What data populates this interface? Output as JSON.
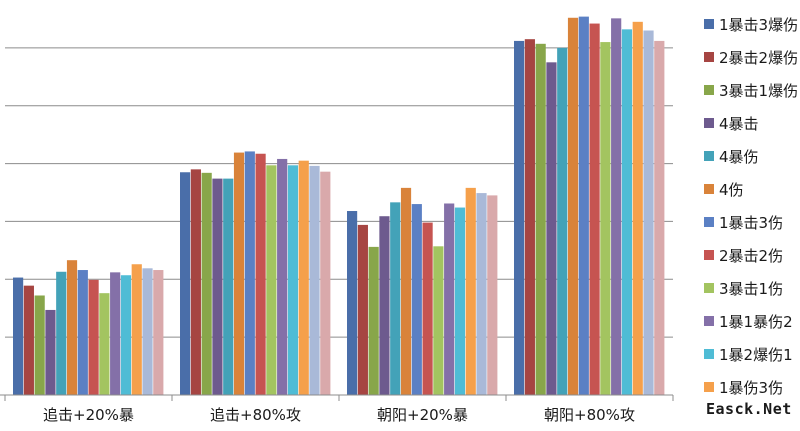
{
  "chart_data": {
    "type": "bar",
    "categories": [
      "追击+20%暴",
      "追击+80%攻",
      "朝阳+20%暴",
      "朝阳+80%攻"
    ],
    "series": [
      {
        "name": "1暴击3爆伤",
        "color": "#4a6ea9",
        "values": [
          203,
          385,
          318,
          612
        ]
      },
      {
        "name": "2暴击2爆伤",
        "color": "#a64542",
        "values": [
          189,
          390,
          294,
          615
        ]
      },
      {
        "name": "3暴击1爆伤",
        "color": "#88a64a",
        "values": [
          172,
          384,
          256,
          607
        ]
      },
      {
        "name": "4暴击",
        "color": "#6d5a8e",
        "values": [
          147,
          374,
          309,
          575
        ]
      },
      {
        "name": "4暴伤",
        "color": "#43a2b8",
        "values": [
          213,
          374,
          333,
          600
        ]
      },
      {
        "name": "4伤",
        "color": "#d9833a",
        "values": [
          233,
          419,
          358,
          652
        ]
      },
      {
        "name": "1暴击3伤",
        "color": "#5b80c4",
        "values": [
          216,
          421,
          330,
          654
        ]
      },
      {
        "name": "2暴击2伤",
        "color": "#c65451",
        "values": [
          199,
          417,
          298,
          642
        ]
      },
      {
        "name": "3暴击1伤",
        "color": "#a3c460",
        "values": [
          176,
          397,
          257,
          610
        ]
      },
      {
        "name": "1暴1暴伤2",
        "color": "#8470a8",
        "values": [
          212,
          408,
          331,
          651
        ]
      },
      {
        "name": "1暴2爆伤1",
        "color": "#4fbcd5",
        "values": [
          207,
          397,
          324,
          632
        ]
      },
      {
        "name": "1暴伤3伤",
        "color": "#f5a04b",
        "values": [
          226,
          405,
          358,
          645
        ]
      },
      {
        "name": "",
        "color": "#a9b9d8",
        "values": [
          219,
          396,
          349,
          630
        ]
      },
      {
        "name": "",
        "color": "#d9a9ab",
        "values": [
          216,
          386,
          345,
          612
        ]
      }
    ],
    "ylim": [
      0,
      700
    ],
    "grid": true,
    "legend_position": "right"
  },
  "watermark": "Easck.Net"
}
